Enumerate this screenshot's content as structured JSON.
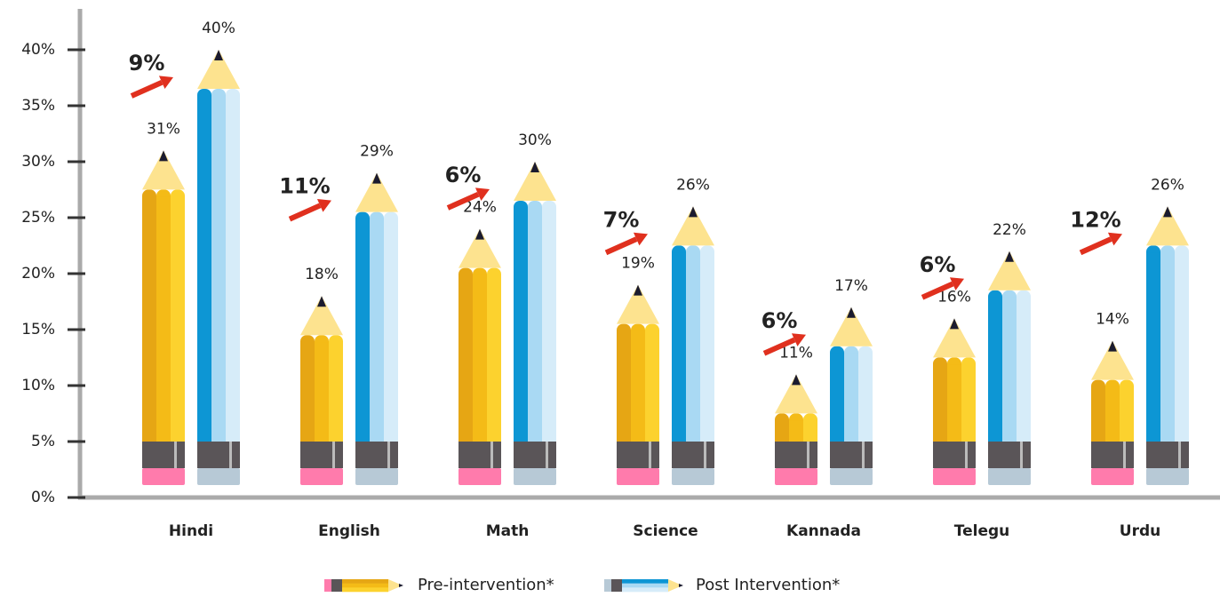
{
  "chart_data": {
    "type": "bar",
    "categories": [
      "Hindi",
      "English",
      "Math",
      "Science",
      "Kannada",
      "Telegu",
      "Urdu"
    ],
    "series": [
      {
        "name": "Pre-intervention*",
        "color": "#f4bb17",
        "values": [
          31,
          18,
          24,
          19,
          11,
          16,
          14
        ],
        "value_labels": [
          "31%",
          "18%",
          "24%",
          "19%",
          "11%",
          "16%",
          "14%"
        ]
      },
      {
        "name": "Post Intervention*",
        "color": "#0d96d4",
        "values": [
          40,
          29,
          30,
          26,
          17,
          22,
          26
        ],
        "value_labels": [
          "40%",
          "29%",
          "30%",
          "26%",
          "17%",
          "22%",
          "26%"
        ]
      }
    ],
    "increase": {
      "color": "#e0301e",
      "values": [
        9,
        11,
        6,
        7,
        6,
        6,
        12
      ],
      "value_labels": [
        "9%",
        "11%",
        "6%",
        "7%",
        "6%",
        "6%",
        "12%"
      ]
    },
    "ylim": [
      0,
      40
    ],
    "yticks": [
      {
        "value": 0,
        "label": "0%"
      },
      {
        "value": 5,
        "label": "5%"
      },
      {
        "value": 10,
        "label": "10%"
      },
      {
        "value": 15,
        "label": "15%"
      },
      {
        "value": 20,
        "label": "20%"
      },
      {
        "value": 25,
        "label": "25%"
      },
      {
        "value": 30,
        "label": "30%"
      },
      {
        "value": 35,
        "label": "35%"
      },
      {
        "value": 40,
        "label": "40%"
      }
    ],
    "legend": "bottom"
  }
}
